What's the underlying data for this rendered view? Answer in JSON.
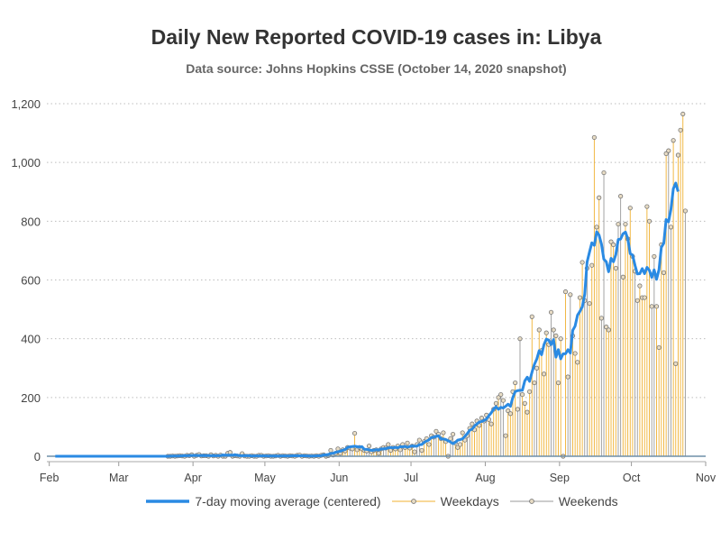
{
  "chart_data": {
    "type": "bar",
    "title": "Daily New Reported COVID-19 cases in: Libya",
    "subtitle": "Data source: Johns Hopkins CSSE (October 14, 2020 snapshot)",
    "x_tick_labels": [
      "Feb",
      "Mar",
      "Apr",
      "May",
      "Jun",
      "Jul",
      "Aug",
      "Sep",
      "Oct",
      "Nov"
    ],
    "x_tick_dates": [
      "2020-02-01",
      "2020-03-01",
      "2020-04-01",
      "2020-05-01",
      "2020-06-01",
      "2020-07-01",
      "2020-08-01",
      "2020-09-01",
      "2020-10-01",
      "2020-11-01"
    ],
    "x_range": [
      "2020-01-31",
      "2020-11-01"
    ],
    "y_tick_labels": [
      "0",
      "200",
      "400",
      "600",
      "800",
      "1,000",
      "1,200"
    ],
    "ylim": [
      0,
      1200
    ],
    "y_ticks": [
      0,
      200,
      400,
      600,
      800,
      1000,
      1200
    ],
    "grid": "horizontal dotted",
    "legend_position": "bottom",
    "series_start_date": "2020-01-31",
    "daily_new_cases": [
      0,
      0,
      0,
      0,
      0,
      0,
      0,
      0,
      0,
      0,
      0,
      0,
      0,
      0,
      0,
      0,
      0,
      0,
      0,
      0,
      0,
      0,
      0,
      0,
      0,
      0,
      0,
      0,
      0,
      0,
      0,
      0,
      0,
      0,
      0,
      0,
      0,
      0,
      0,
      0,
      0,
      0,
      0,
      0,
      0,
      0,
      0,
      0,
      0,
      0,
      0,
      0,
      1,
      0,
      1,
      2,
      1,
      0,
      3,
      2,
      5,
      0,
      3,
      6,
      1,
      2,
      2,
      0,
      5,
      1,
      3,
      0,
      4,
      0,
      0,
      10,
      13,
      0,
      2,
      1,
      0,
      9,
      1,
      0,
      0,
      2,
      0,
      0,
      3,
      3,
      0,
      1,
      2,
      0,
      0,
      1,
      3,
      0,
      2,
      1,
      0,
      2,
      1,
      0,
      3,
      4,
      0,
      2,
      1,
      0,
      1,
      0,
      2,
      0,
      3,
      5,
      0,
      2,
      20,
      4,
      10,
      25,
      10,
      22,
      18,
      30,
      28,
      25,
      78,
      22,
      30,
      25,
      20,
      18,
      35,
      15,
      20,
      22,
      10,
      25,
      30,
      28,
      40,
      20,
      30,
      25,
      35,
      22,
      40,
      30,
      45,
      28,
      35,
      15,
      40,
      55,
      20,
      50,
      60,
      40,
      70,
      65,
      85,
      75,
      60,
      80,
      50,
      0,
      60,
      75,
      45,
      30,
      40,
      80,
      55,
      70,
      95,
      110,
      90,
      120,
      105,
      130,
      120,
      140,
      125,
      110,
      160,
      180,
      200,
      210,
      190,
      70,
      155,
      145,
      220,
      250,
      160,
      400,
      210,
      180,
      150,
      220,
      475,
      250,
      300,
      430,
      360,
      280,
      420,
      380,
      490,
      430,
      410,
      250,
      400,
      0,
      560,
      270,
      550,
      410,
      350,
      320,
      540,
      660,
      530,
      640,
      520,
      650,
      1085,
      780,
      880,
      470,
      965,
      440,
      430,
      730,
      720,
      640,
      790,
      885,
      610,
      790,
      740,
      845,
      680,
      630,
      530,
      580,
      540,
      540,
      850,
      800,
      510,
      680,
      510,
      370,
      720,
      625,
      1030,
      1040,
      780,
      1075,
      315,
      1025,
      1110,
      1165,
      835
    ]
  },
  "legend": {
    "moving_average_label": "7-day moving average (centered)",
    "weekdays_label": "Weekdays",
    "weekends_label": "Weekends"
  },
  "colors": {
    "moving_average": "#2a8ae3",
    "weekdays": "#f0b132",
    "weekends": "#9a9a9a",
    "marker_fill": "#e8dcc4",
    "grid": "#bdbdbd",
    "axis": "#6f8fa8"
  }
}
